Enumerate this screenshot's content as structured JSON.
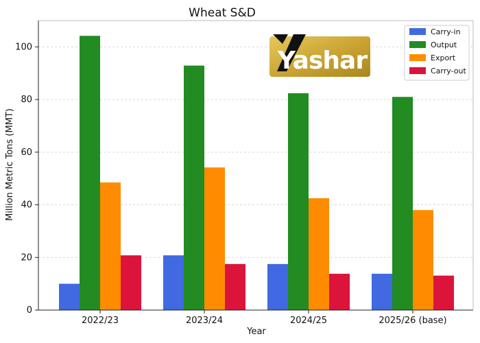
{
  "logo": {
    "text": "Yashar",
    "colors": {
      "plate_dark": "#a8871f",
      "plate_light": "#e6c85a",
      "text": "#ffffff",
      "mark": "#111111"
    }
  },
  "chart_data": {
    "type": "bar",
    "title": "Wheat S&D",
    "xlabel": "Year",
    "ylabel": "Million Metric Tons (MMT)",
    "categories": [
      "2022/23",
      "2023/24",
      "2024/25",
      "2025/26 (base)"
    ],
    "ylim": [
      0,
      110
    ],
    "yticks": [
      0,
      20,
      40,
      60,
      80,
      100
    ],
    "grid": true,
    "legend_position": "top-right",
    "series": [
      {
        "name": "Carry-in",
        "color": "#4169e1",
        "values": [
          10.0,
          20.8,
          17.5,
          13.8
        ]
      },
      {
        "name": "Output",
        "color": "#228b22",
        "values": [
          104.2,
          92.9,
          82.4,
          81.0
        ]
      },
      {
        "name": "Export",
        "color": "#ff8c00",
        "values": [
          48.5,
          54.2,
          42.5,
          38.0
        ]
      },
      {
        "name": "Carry-out",
        "color": "#dc143c",
        "values": [
          20.8,
          17.5,
          13.8,
          13.1
        ]
      }
    ]
  }
}
